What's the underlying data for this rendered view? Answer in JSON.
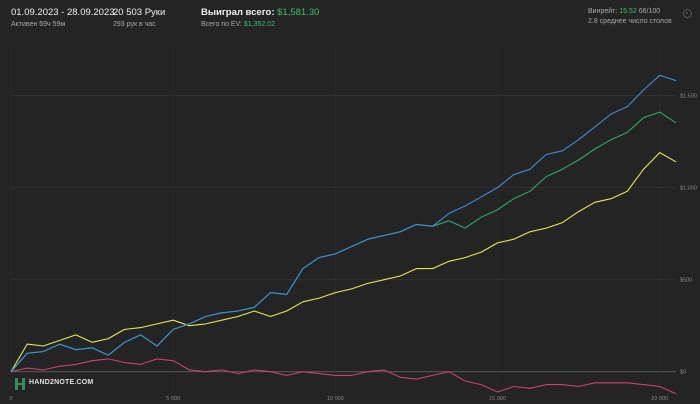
{
  "header": {
    "date_range": "01.09.2023 - 28.09.2023",
    "active_time": "Активен 69ч 59м",
    "hands_total": "20 503 Руки",
    "hands_per_hour": "293 рук в час",
    "won_label": "Выиграл всего:",
    "won_value": "$1,581.30",
    "ev_label": "Всего по EV:",
    "ev_value": "$1,352.02",
    "winrate_label": "Винрейт:",
    "winrate_value": "15.52",
    "winrate_suffix": "66/100",
    "avg_tables": "2.8 среднее число столов"
  },
  "logo_text": "HAND2NOTE.COM",
  "colors": {
    "background": "#242424",
    "won_series": "#3b8ed8",
    "ev_series": "#2cab6b",
    "showdown_series": "#e8e84a",
    "nonshowdown_series": "#cc3f73",
    "accent_green": "#3fbf6a"
  },
  "icons": {
    "settings": "gear-icon",
    "logo": "hand2note-logo-icon"
  },
  "chart_data": {
    "type": "line",
    "x_ticks": [
      "0",
      "5 000",
      "10 000",
      "15 000",
      "20 000"
    ],
    "y_ticks": [
      "$0",
      "$500",
      "$1,000",
      "$1,500"
    ],
    "xlim": [
      0,
      20503
    ],
    "ylim": [
      -110,
      1780
    ],
    "grid": true,
    "legend": "none",
    "x": [
      0,
      500,
      1000,
      1500,
      2000,
      2500,
      3000,
      3500,
      4000,
      4500,
      5000,
      5500,
      6000,
      6500,
      7000,
      7500,
      8000,
      8500,
      9000,
      9500,
      10000,
      10500,
      11000,
      11500,
      12000,
      12500,
      13000,
      13500,
      14000,
      14500,
      15000,
      15500,
      16000,
      16500,
      17000,
      17500,
      18000,
      18500,
      19000,
      19500,
      20000,
      20503
    ],
    "series": [
      {
        "values": [
          0,
          100,
          110,
          150,
          120,
          130,
          90,
          160,
          200,
          140,
          230,
          260,
          300,
          320,
          330,
          350,
          430,
          420,
          560,
          620,
          640,
          680,
          720,
          740,
          760,
          800,
          790,
          860,
          900,
          950,
          1000,
          1070,
          1100,
          1180,
          1200,
          1260,
          1330,
          1400,
          1440,
          1530,
          1610,
          1581
        ]
      },
      {
        "values": [
          0,
          100,
          110,
          150,
          120,
          130,
          90,
          160,
          200,
          140,
          230,
          260,
          300,
          320,
          330,
          350,
          430,
          420,
          560,
          620,
          640,
          680,
          720,
          740,
          760,
          800,
          790,
          820,
          780,
          840,
          880,
          940,
          980,
          1060,
          1100,
          1150,
          1210,
          1260,
          1300,
          1380,
          1410,
          1352
        ]
      },
      {
        "values": [
          0,
          150,
          140,
          170,
          200,
          160,
          180,
          230,
          240,
          260,
          280,
          250,
          260,
          280,
          300,
          330,
          300,
          330,
          380,
          400,
          430,
          450,
          480,
          500,
          520,
          560,
          560,
          600,
          620,
          650,
          700,
          720,
          760,
          780,
          810,
          870,
          920,
          940,
          980,
          1100,
          1190,
          1140
        ]
      },
      {
        "values": [
          0,
          20,
          10,
          30,
          40,
          60,
          70,
          50,
          40,
          70,
          60,
          10,
          0,
          10,
          -10,
          10,
          0,
          -20,
          0,
          -10,
          -20,
          -20,
          0,
          10,
          -30,
          -40,
          -20,
          0,
          -50,
          -70,
          -110,
          -80,
          -90,
          -70,
          -70,
          -80,
          -60,
          -60,
          -60,
          -70,
          -80,
          -120
        ]
      }
    ]
  }
}
